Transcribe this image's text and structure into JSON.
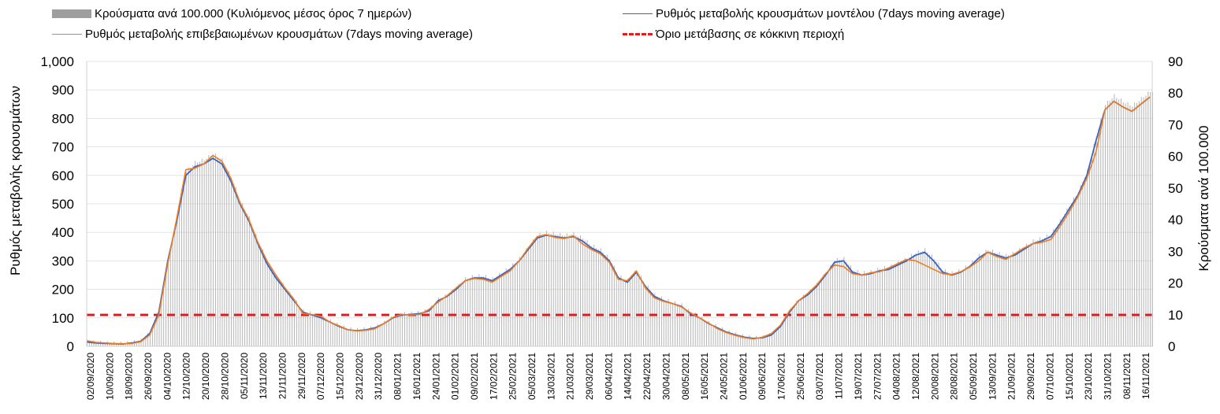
{
  "chart_data": {
    "type": "bar+line",
    "legend": [
      {
        "key": "bars",
        "label": "Κρούσματα ανά 100.000 (Κυλιόμενος μέσος όρος 7 ημερών)",
        "color": "#9e9e9e",
        "kind": "bar"
      },
      {
        "key": "model",
        "label": "Ρυθμός μεταβολής κρουσμάτων μοντέλου (7days moving average)",
        "color": "#3a63c4",
        "kind": "line"
      },
      {
        "key": "confirmed",
        "label": "Ρυθμός μεταβολής επιβεβαιωμένων κρουσμάτων (7days moving average)",
        "color": "#f07c20",
        "kind": "line"
      },
      {
        "key": "threshold",
        "label": "Όριο μετάβασης σε κόκκινη περιοχή",
        "color": "#e8191b",
        "kind": "dash"
      }
    ],
    "legend_placement": "top",
    "ylabel_left": "Ρυθμός μεταβολής κρουσμάτων",
    "ylabel_right": "Κρούσματα ανά 100.000",
    "ylim_left": [
      0,
      1000
    ],
    "ylim_right": [
      0,
      90
    ],
    "yticks_left": [
      "0",
      "100",
      "200",
      "300",
      "400",
      "500",
      "600",
      "700",
      "800",
      "900",
      "1,000"
    ],
    "yticks_right": [
      "0",
      "10",
      "20",
      "30",
      "40",
      "50",
      "60",
      "70",
      "80",
      "90"
    ],
    "xlabels": [
      "02/09/2020",
      "10/09/2020",
      "18/09/2020",
      "26/09/2020",
      "04/10/2020",
      "12/10/2020",
      "20/10/2020",
      "28/10/2020",
      "05/11/2020",
      "13/11/2020",
      "21/11/2020",
      "29/11/2020",
      "07/12/2020",
      "15/12/2020",
      "23/12/2020",
      "31/12/2020",
      "08/01/2021",
      "16/01/2021",
      "24/01/2021",
      "01/02/2021",
      "09/02/2021",
      "17/02/2021",
      "25/02/2021",
      "05/03/2021",
      "13/03/2021",
      "21/03/2021",
      "29/03/2021",
      "06/04/2021",
      "14/04/2021",
      "22/04/2021",
      "30/04/2021",
      "08/05/2021",
      "16/05/2021",
      "24/05/2021",
      "01/06/2021",
      "09/06/2021",
      "17/06/2021",
      "25/06/2021",
      "03/07/2021",
      "11/07/2021",
      "19/07/2021",
      "27/07/2021",
      "04/08/2021",
      "12/08/2021",
      "20/08/2021",
      "28/08/2021",
      "05/09/2021",
      "13/09/2021",
      "21/09/2021",
      "29/09/2021",
      "07/10/2021",
      "15/10/2021",
      "23/10/2021",
      "31/10/2021",
      "08/11/2021",
      "16/11/2021"
    ],
    "threshold_left": 110,
    "grid": true,
    "model_series": [
      [
        0,
        15
      ],
      [
        8,
        12
      ],
      [
        16,
        10
      ],
      [
        24,
        9
      ],
      [
        32,
        8
      ],
      [
        40,
        12
      ],
      [
        48,
        18
      ],
      [
        56,
        45
      ],
      [
        64,
        120
      ],
      [
        72,
        300
      ],
      [
        80,
        440
      ],
      [
        88,
        600
      ],
      [
        96,
        630
      ],
      [
        104,
        640
      ],
      [
        112,
        660
      ],
      [
        120,
        640
      ],
      [
        128,
        580
      ],
      [
        136,
        500
      ],
      [
        144,
        440
      ],
      [
        152,
        360
      ],
      [
        160,
        290
      ],
      [
        168,
        240
      ],
      [
        176,
        200
      ],
      [
        184,
        160
      ],
      [
        192,
        120
      ],
      [
        200,
        110
      ],
      [
        208,
        100
      ],
      [
        216,
        85
      ],
      [
        224,
        70
      ],
      [
        232,
        58
      ],
      [
        240,
        55
      ],
      [
        248,
        58
      ],
      [
        256,
        65
      ],
      [
        264,
        80
      ],
      [
        272,
        100
      ],
      [
        280,
        110
      ],
      [
        288,
        112
      ],
      [
        296,
        115
      ],
      [
        304,
        125
      ],
      [
        312,
        160
      ],
      [
        320,
        175
      ],
      [
        328,
        200
      ],
      [
        336,
        230
      ],
      [
        344,
        240
      ],
      [
        352,
        240
      ],
      [
        360,
        230
      ],
      [
        368,
        250
      ],
      [
        376,
        270
      ],
      [
        384,
        300
      ],
      [
        392,
        340
      ],
      [
        400,
        380
      ],
      [
        408,
        390
      ],
      [
        416,
        385
      ],
      [
        424,
        380
      ],
      [
        432,
        385
      ],
      [
        440,
        370
      ],
      [
        448,
        345
      ],
      [
        456,
        330
      ],
      [
        464,
        300
      ],
      [
        472,
        240
      ],
      [
        480,
        225
      ],
      [
        488,
        260
      ],
      [
        496,
        210
      ],
      [
        504,
        175
      ],
      [
        512,
        160
      ],
      [
        520,
        150
      ],
      [
        528,
        140
      ],
      [
        536,
        115
      ],
      [
        544,
        100
      ],
      [
        552,
        80
      ],
      [
        560,
        65
      ],
      [
        568,
        50
      ],
      [
        576,
        40
      ],
      [
        584,
        32
      ],
      [
        592,
        28
      ],
      [
        600,
        30
      ],
      [
        608,
        40
      ],
      [
        616,
        70
      ],
      [
        624,
        120
      ],
      [
        632,
        160
      ],
      [
        640,
        180
      ],
      [
        648,
        210
      ],
      [
        656,
        250
      ],
      [
        664,
        295
      ],
      [
        672,
        300
      ],
      [
        680,
        260
      ],
      [
        688,
        250
      ],
      [
        696,
        255
      ],
      [
        704,
        265
      ],
      [
        712,
        270
      ],
      [
        720,
        285
      ],
      [
        728,
        300
      ],
      [
        736,
        320
      ],
      [
        744,
        330
      ],
      [
        752,
        300
      ],
      [
        760,
        260
      ],
      [
        768,
        250
      ],
      [
        776,
        260
      ],
      [
        784,
        280
      ],
      [
        792,
        310
      ],
      [
        800,
        330
      ],
      [
        808,
        320
      ],
      [
        816,
        310
      ],
      [
        824,
        320
      ],
      [
        832,
        340
      ],
      [
        840,
        360
      ],
      [
        848,
        370
      ],
      [
        856,
        385
      ],
      [
        864,
        430
      ],
      [
        872,
        480
      ],
      [
        880,
        530
      ],
      [
        888,
        600
      ],
      [
        896,
        720
      ],
      [
        904,
        830
      ],
      [
        912,
        860
      ],
      [
        920,
        840
      ],
      [
        928,
        825
      ],
      [
        936,
        850
      ],
      [
        944,
        875
      ]
    ],
    "confirmed_series": [
      [
        0,
        20
      ],
      [
        8,
        14
      ],
      [
        16,
        12
      ],
      [
        24,
        10
      ],
      [
        32,
        9
      ],
      [
        40,
        10
      ],
      [
        48,
        16
      ],
      [
        56,
        40
      ],
      [
        64,
        110
      ],
      [
        72,
        290
      ],
      [
        80,
        450
      ],
      [
        88,
        620
      ],
      [
        96,
        625
      ],
      [
        104,
        640
      ],
      [
        112,
        670
      ],
      [
        120,
        650
      ],
      [
        128,
        590
      ],
      [
        136,
        505
      ],
      [
        144,
        445
      ],
      [
        152,
        365
      ],
      [
        160,
        300
      ],
      [
        168,
        250
      ],
      [
        176,
        205
      ],
      [
        184,
        165
      ],
      [
        192,
        115
      ],
      [
        200,
        112
      ],
      [
        208,
        105
      ],
      [
        216,
        85
      ],
      [
        224,
        72
      ],
      [
        232,
        58
      ],
      [
        240,
        54
      ],
      [
        248,
        56
      ],
      [
        256,
        62
      ],
      [
        264,
        80
      ],
      [
        272,
        102
      ],
      [
        280,
        112
      ],
      [
        288,
        110
      ],
      [
        296,
        112
      ],
      [
        304,
        130
      ],
      [
        312,
        155
      ],
      [
        320,
        178
      ],
      [
        328,
        205
      ],
      [
        336,
        230
      ],
      [
        344,
        238
      ],
      [
        352,
        235
      ],
      [
        360,
        225
      ],
      [
        368,
        245
      ],
      [
        376,
        265
      ],
      [
        384,
        300
      ],
      [
        392,
        345
      ],
      [
        400,
        385
      ],
      [
        408,
        392
      ],
      [
        416,
        382
      ],
      [
        424,
        378
      ],
      [
        432,
        388
      ],
      [
        440,
        360
      ],
      [
        448,
        340
      ],
      [
        456,
        325
      ],
      [
        464,
        295
      ],
      [
        472,
        235
      ],
      [
        480,
        230
      ],
      [
        488,
        265
      ],
      [
        496,
        205
      ],
      [
        504,
        170
      ],
      [
        512,
        158
      ],
      [
        520,
        150
      ],
      [
        528,
        138
      ],
      [
        536,
        118
      ],
      [
        544,
        100
      ],
      [
        552,
        82
      ],
      [
        560,
        62
      ],
      [
        568,
        48
      ],
      [
        576,
        38
      ],
      [
        584,
        30
      ],
      [
        592,
        26
      ],
      [
        600,
        32
      ],
      [
        608,
        45
      ],
      [
        616,
        75
      ],
      [
        624,
        125
      ],
      [
        632,
        160
      ],
      [
        640,
        185
      ],
      [
        648,
        215
      ],
      [
        656,
        255
      ],
      [
        664,
        285
      ],
      [
        672,
        280
      ],
      [
        680,
        255
      ],
      [
        688,
        250
      ],
      [
        696,
        258
      ],
      [
        704,
        262
      ],
      [
        712,
        275
      ],
      [
        720,
        290
      ],
      [
        728,
        305
      ],
      [
        736,
        300
      ],
      [
        744,
        285
      ],
      [
        752,
        270
      ],
      [
        760,
        255
      ],
      [
        768,
        252
      ],
      [
        776,
        262
      ],
      [
        784,
        278
      ],
      [
        792,
        300
      ],
      [
        800,
        330
      ],
      [
        808,
        315
      ],
      [
        816,
        305
      ],
      [
        824,
        325
      ],
      [
        832,
        345
      ],
      [
        840,
        360
      ],
      [
        848,
        365
      ],
      [
        856,
        375
      ],
      [
        864,
        420
      ],
      [
        872,
        470
      ],
      [
        880,
        525
      ],
      [
        888,
        590
      ],
      [
        896,
        680
      ],
      [
        904,
        830
      ],
      [
        912,
        860
      ],
      [
        920,
        840
      ],
      [
        928,
        825
      ],
      [
        936,
        850
      ],
      [
        944,
        875
      ]
    ]
  }
}
